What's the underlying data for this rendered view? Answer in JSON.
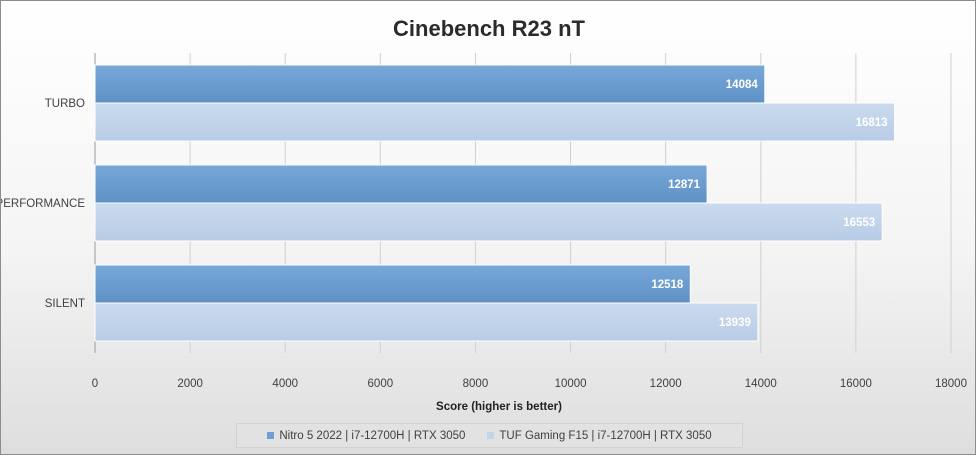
{
  "chart_data": {
    "type": "bar",
    "orientation": "horizontal",
    "title": "Cinebench R23 nT",
    "xlabel": "Score (higher is better)",
    "ylabel": "",
    "categories": [
      "TURBO",
      "PERFORMANCE",
      "SILENT"
    ],
    "series": [
      {
        "name": "Nitro 5 2022 | i7-12700H | RTX 3050",
        "values": [
          14084,
          12871,
          12518
        ],
        "color": "#6fa0d2"
      },
      {
        "name": "TUF Gaming F15 | i7-12700H | RTX 3050",
        "values": [
          16813,
          16553,
          13939
        ],
        "color": "#c2d4ea"
      }
    ],
    "xlim": [
      0,
      18000
    ],
    "xticks": [
      0,
      2000,
      4000,
      6000,
      8000,
      10000,
      12000,
      14000,
      16000,
      18000
    ],
    "grid": true,
    "legend_position": "bottom",
    "data_labels": true
  }
}
